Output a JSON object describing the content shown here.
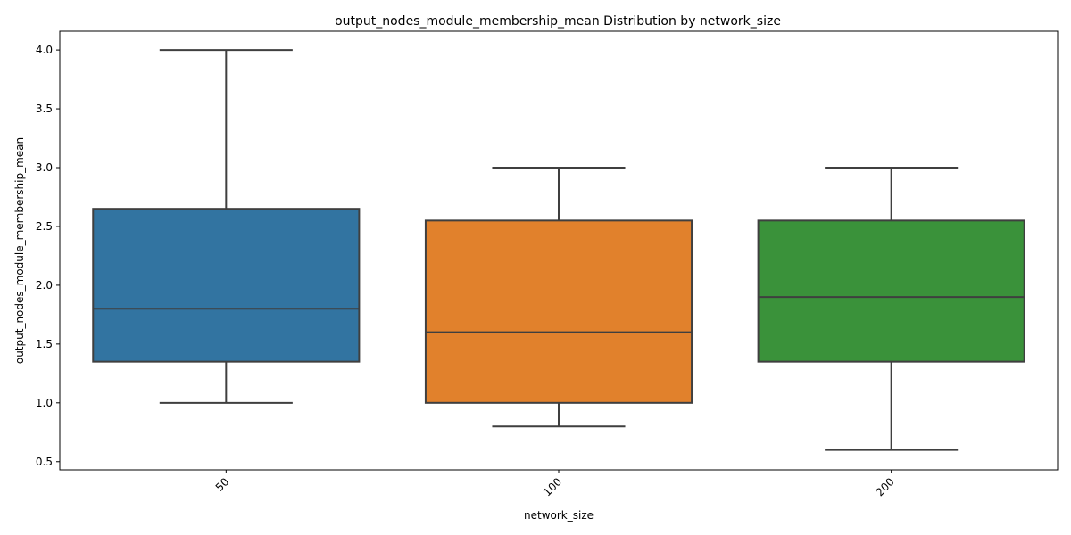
{
  "chart_data": {
    "type": "box",
    "title": "output_nodes_module_membership_mean Distribution by network_size",
    "xlabel": "network_size",
    "ylabel": "output_nodes_module_membership_mean",
    "categories": [
      "50",
      "100",
      "200"
    ],
    "ylim": [
      0.43,
      4.16
    ],
    "yticks": [
      0.5,
      1.0,
      1.5,
      2.0,
      2.5,
      3.0,
      3.5,
      4.0
    ],
    "ytick_labels": [
      "0.5",
      "1.0",
      "1.5",
      "2.0",
      "2.5",
      "3.0",
      "3.5",
      "4.0"
    ],
    "boxes": [
      {
        "category": "50",
        "whisker_low": 1.0,
        "q1": 1.35,
        "median": 1.8,
        "q3": 2.65,
        "whisker_high": 4.0,
        "color": "#3274a1"
      },
      {
        "category": "100",
        "whisker_low": 0.8,
        "q1": 1.0,
        "median": 1.6,
        "q3": 2.55,
        "whisker_high": 3.0,
        "color": "#e1812c"
      },
      {
        "category": "200",
        "whisker_low": 0.6,
        "q1": 1.35,
        "median": 1.9,
        "q3": 2.55,
        "whisker_high": 3.0,
        "color": "#3a923a"
      }
    ],
    "grid": false,
    "legend": "none"
  }
}
